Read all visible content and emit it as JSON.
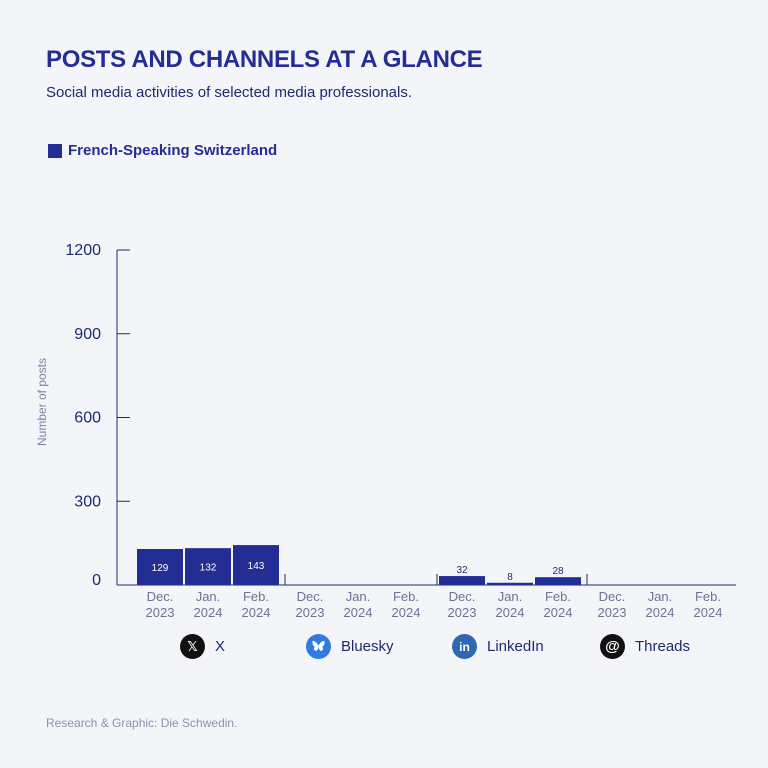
{
  "header": {
    "title": "POSTS AND CHANNELS AT A GLANCE",
    "subtitle": "Social media activities of selected media professionals."
  },
  "legend": {
    "label": "French-Speaking Switzerland",
    "color": "#232e95"
  },
  "footer": {
    "credit": "Research & Graphic: Die Schwedin."
  },
  "platforms": [
    {
      "name": "X",
      "icon": "x-icon",
      "color": "#111111"
    },
    {
      "name": "Bluesky",
      "icon": "bluesky-icon",
      "color": "#2f7be0"
    },
    {
      "name": "LinkedIn",
      "icon": "linkedin-icon",
      "color": "#2e67b2"
    },
    {
      "name": "Threads",
      "icon": "threads-icon",
      "color": "#111111"
    }
  ],
  "chart_data": {
    "type": "bar",
    "ylabel": "Number of posts",
    "ylim": [
      0,
      1200
    ],
    "yticks": [
      0,
      300,
      600,
      900,
      1200
    ],
    "grid": false,
    "groups": [
      {
        "platform": "X",
        "categories": [
          [
            "Dec.",
            "2023"
          ],
          [
            "Jan.",
            "2024"
          ],
          [
            "Feb.",
            "2024"
          ]
        ],
        "values": [
          129,
          132,
          143
        ]
      },
      {
        "platform": "Bluesky",
        "categories": [
          [
            "Dec.",
            "2023"
          ],
          [
            "Jan.",
            "2024"
          ],
          [
            "Feb.",
            "2024"
          ]
        ],
        "values": [
          0,
          0,
          0
        ]
      },
      {
        "platform": "LinkedIn",
        "categories": [
          [
            "Dec.",
            "2023"
          ],
          [
            "Jan.",
            "2024"
          ],
          [
            "Feb.",
            "2024"
          ]
        ],
        "values": [
          32,
          8,
          28
        ]
      },
      {
        "platform": "Threads",
        "categories": [
          [
            "Dec.",
            "2023"
          ],
          [
            "Jan.",
            "2024"
          ],
          [
            "Feb.",
            "2024"
          ]
        ],
        "values": [
          0,
          0,
          0
        ]
      }
    ],
    "series": [
      {
        "name": "French-Speaking Switzerland",
        "color": "#232e95"
      }
    ]
  }
}
